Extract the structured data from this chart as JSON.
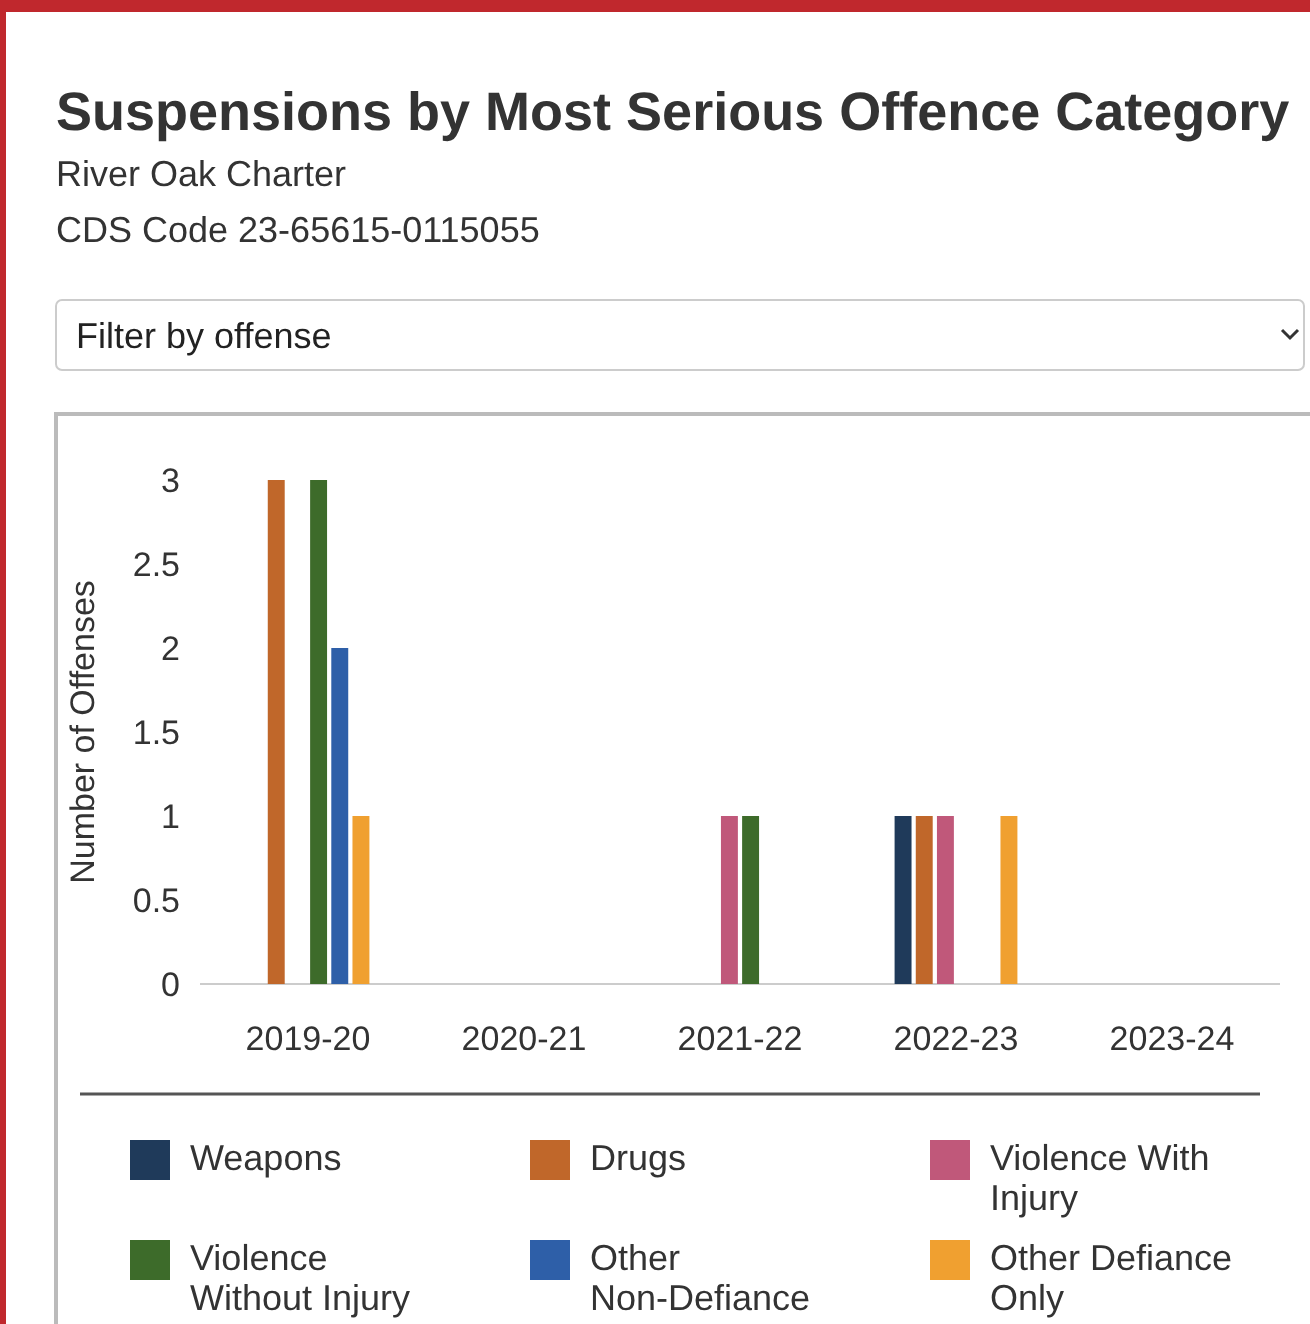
{
  "chart_data": {
    "type": "bar",
    "title": "Suspensions by Most Serious Offence Category",
    "subtitle": "River Oak Charter",
    "annotations": [
      "CDS Code 23-65615-0115055",
      "Filter by offense"
    ],
    "ylabel": "Number of Offenses",
    "categories": [
      "2019-20",
      "2020-21",
      "2021-22",
      "2022-23",
      "2023-24"
    ],
    "series": [
      {
        "name": "Weapons",
        "color": "#1f3a5a",
        "values": [
          0,
          0,
          0,
          1,
          0
        ]
      },
      {
        "name": "Drugs",
        "color": "#c0672a",
        "values": [
          3,
          0,
          0,
          1,
          0
        ]
      },
      {
        "name": "Violence With Injury",
        "color": "#c0587a",
        "values": [
          0,
          0,
          1,
          1,
          0
        ]
      },
      {
        "name": "Violence Without Injury",
        "color": "#3d6b2a",
        "values": [
          3,
          0,
          1,
          0,
          0
        ]
      },
      {
        "name": "Other Non-Defiance",
        "color": "#2e5fa8",
        "values": [
          2,
          0,
          0,
          0,
          0
        ]
      },
      {
        "name": "Other Defiance Only",
        "color": "#f0a030",
        "values": [
          1,
          0,
          0,
          1,
          0
        ]
      }
    ],
    "ylim": [
      0,
      3
    ],
    "yticks": [
      0,
      0.5,
      1,
      1.5,
      2,
      2.5,
      3
    ],
    "legend": "bottom"
  }
}
